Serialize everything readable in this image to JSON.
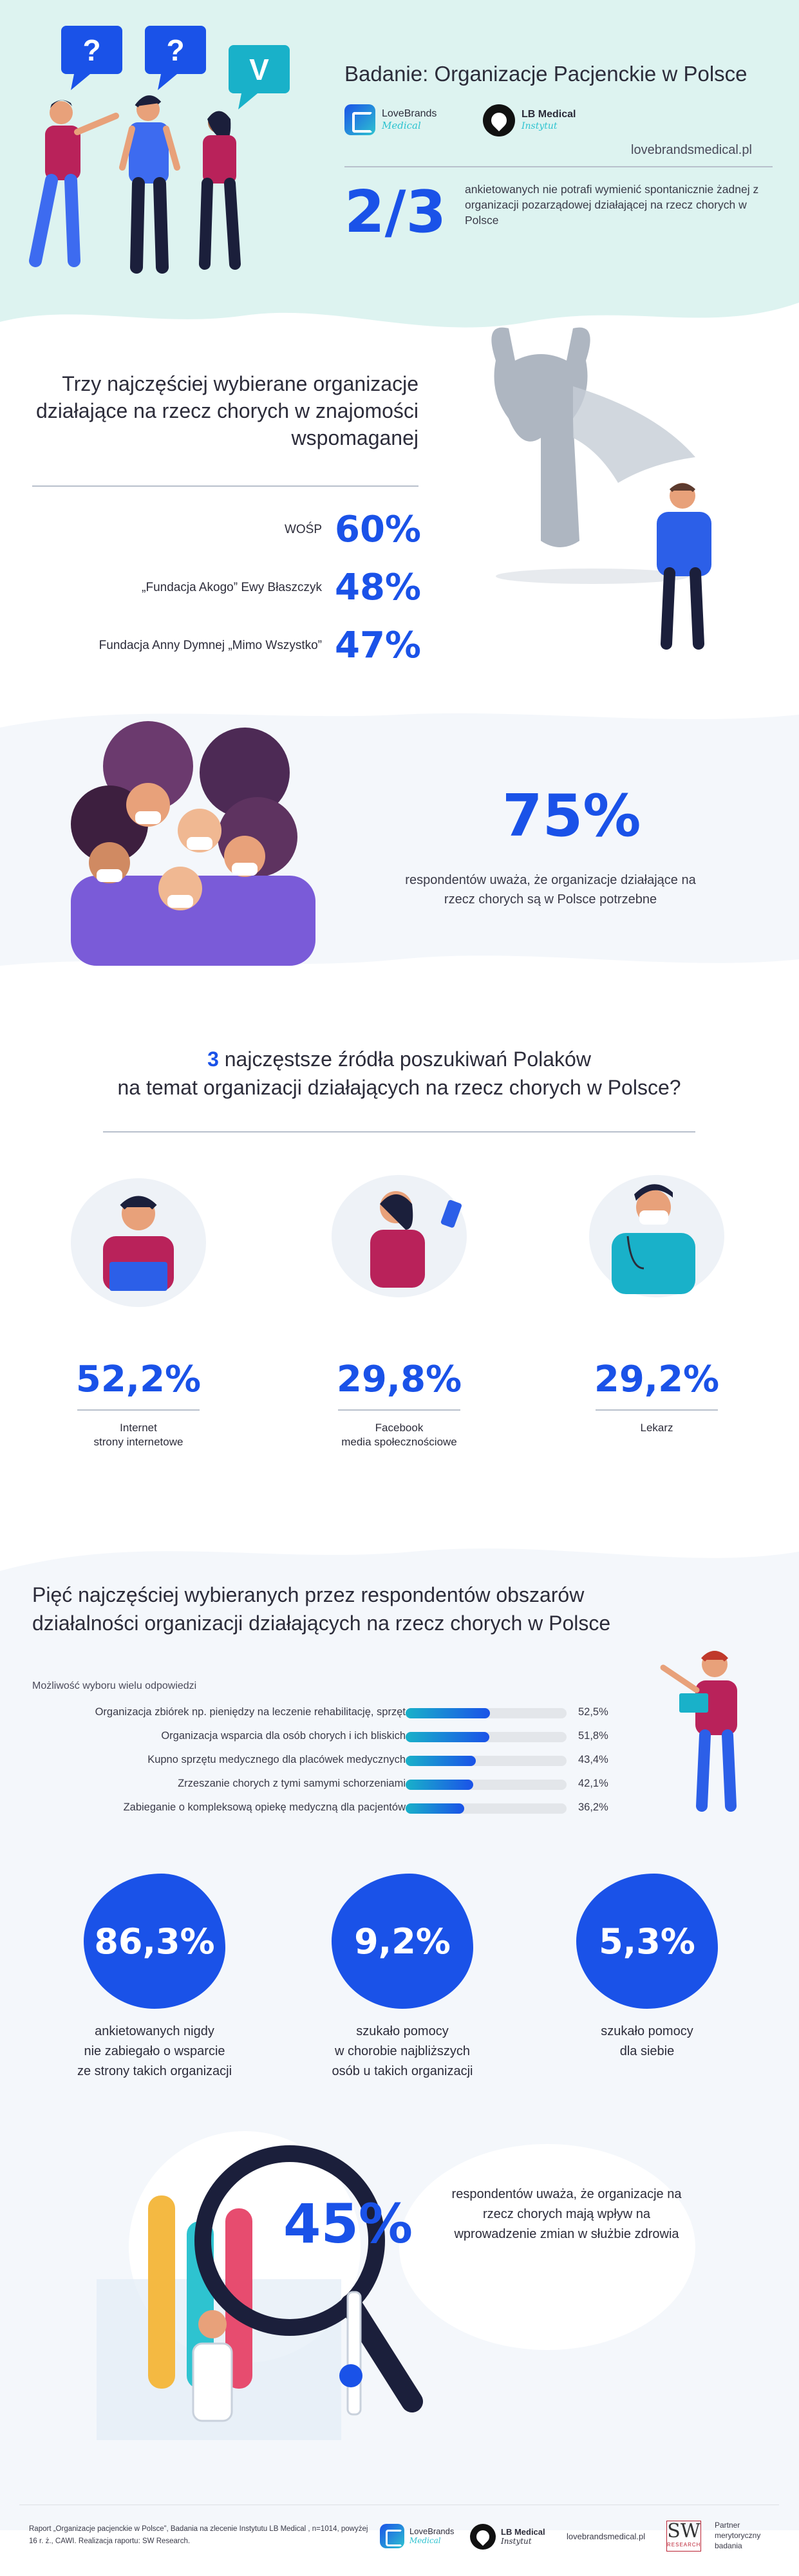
{
  "hero": {
    "title": "Badanie: Organizacje Pacjenckie w Polsce",
    "logo_lovebrands_name": "LoveBrands",
    "logo_lovebrands_sub": "Medical",
    "logo_lbmedical_name": "LB Medical",
    "logo_lbmedical_sub": "Instytut",
    "url": "lovebrandsmedical.pl",
    "stat": "2/3",
    "stat_desc": "ankietowanych nie potrafi wymienić spontanicznie żadnej z organizacji pozarządowej działającej na rzecz chorych w Polsce",
    "bubbles": [
      "?",
      "?",
      "V"
    ]
  },
  "top_orgs": {
    "title": "Trzy najczęściej wybierane organizacje działające na rzecz chorych w znajomości wspomaganej",
    "items": [
      {
        "name": "WOŚP",
        "pct": "60%"
      },
      {
        "name": "„Fundacja Akogo” Ewy Błaszczyk",
        "pct": "48%"
      },
      {
        "name": "Fundacja Anny Dymnej „Mimo Wszystko”",
        "pct": "47%"
      }
    ]
  },
  "needed": {
    "stat": "75%",
    "desc": "respondentów uważa, że organizacje działające na rzecz chorych są w Polsce potrzebne"
  },
  "sources": {
    "title_num": "3",
    "title_rest": "najczęstsze źródła poszukiwań Polaków",
    "title_line2": "na temat organizacji działających na rzecz chorych w Polsce?",
    "items": [
      {
        "pct": "52,2%",
        "label_line1": "Internet",
        "label_line2": "strony internetowe"
      },
      {
        "pct": "29,8%",
        "label_line1": "Facebook",
        "label_line2": "media społecznościowe"
      },
      {
        "pct": "29,2%",
        "label_line1": "Lekarz",
        "label_line2": ""
      }
    ]
  },
  "areas": {
    "title": "Pięć najczęściej wybieranych przez respondentów obszarów działalności organizacji działających na rzecz chorych w Polsce",
    "note": "Możliwość wyboru wielu odpowiedzi",
    "colors": {
      "fill_start": "#19b1c9",
      "fill_end": "#1a52e8",
      "track": "#e3e6ea"
    }
  },
  "chart_data": {
    "type": "bar",
    "orientation": "horizontal",
    "categories": [
      "Organizacja zbiórek np. pieniędzy na leczenie rehabilitację, sprzęt",
      "Organizacja wsparcia dla osób chorych i ich bliskich",
      "Kupno sprzętu medycznego dla placówek medycznych",
      "Zrzeszanie chorych z tymi samymi schorzeniami",
      "Zabieganie o kompleksową opiekę medyczną dla pacjentów"
    ],
    "values": [
      52.5,
      51.8,
      43.4,
      42.1,
      36.2
    ],
    "value_labels": [
      "52,5%",
      "51,8%",
      "43,4%",
      "42,1%",
      "36,2%"
    ],
    "xlim": [
      0,
      100
    ],
    "grid": false
  },
  "help": {
    "items": [
      {
        "stat": "86,3%",
        "desc_lines": [
          "ankietowanych nigdy",
          "nie zabiegało o wsparcie",
          "ze strony takich organizacji"
        ]
      },
      {
        "stat": "9,2%",
        "desc_lines": [
          "szukało pomocy",
          "w chorobie najbliższych",
          "osób u takich organizacji"
        ]
      },
      {
        "stat": "5,3%",
        "desc_lines": [
          "szukało pomocy",
          "dla siebie"
        ]
      }
    ]
  },
  "reform": {
    "stat": "45%",
    "desc": "respondentów uważa, że organizacje na rzecz chorych mają wpływ na wprowadzenie zmian w służbie zdrowia"
  },
  "footer": {
    "report": "Raport „Organizacje pacjenckie w Polsce”, Badania na zlecenie Instytutu LB Medical , n=1014, powyżej 16 r. ż., CAWI. Realizacja raportu: SW Research.",
    "url": "lovebrandsmedical.pl",
    "partner_line1": "Partner",
    "partner_line2": "merytoryczny",
    "partner_line3": "badania",
    "sw_letters": "SW",
    "sw_sub": "RESEARCH"
  }
}
